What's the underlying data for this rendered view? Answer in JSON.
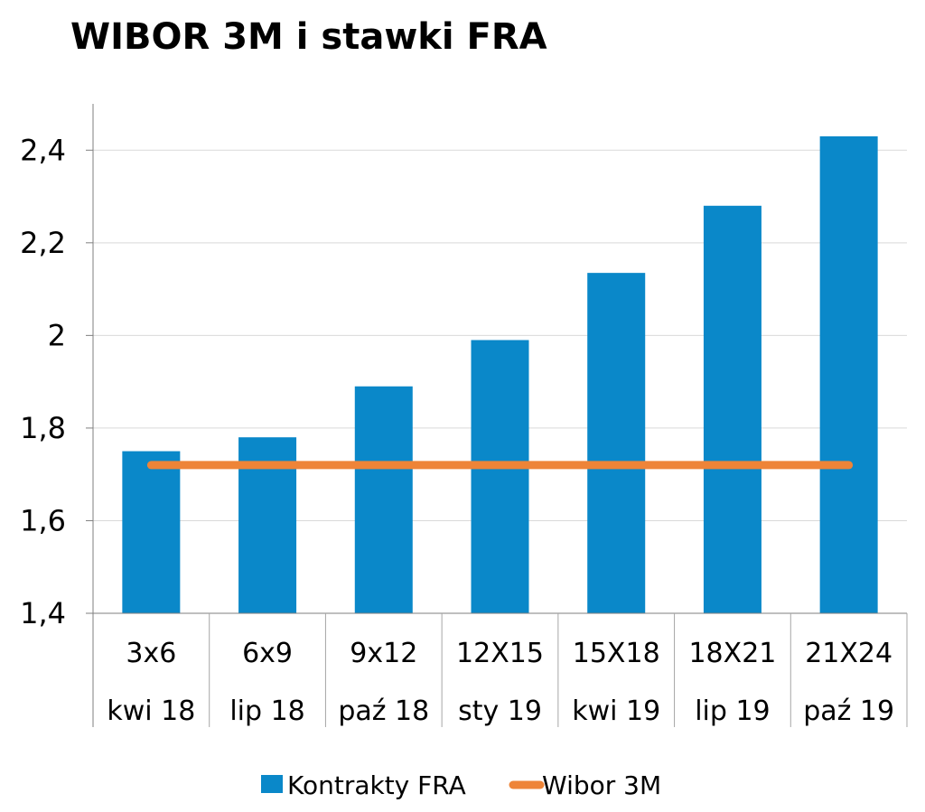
{
  "chart_data": {
    "type": "bar",
    "title": "WIBOR 3M i stawki FRA",
    "xlabel": "",
    "ylabel": "",
    "categories": [
      [
        "3x6",
        "kwi 18"
      ],
      [
        "6x9",
        "lip 18"
      ],
      [
        "9x12",
        "paź 18"
      ],
      [
        "12X15",
        "sty 19"
      ],
      [
        "15X18",
        "kwi 19"
      ],
      [
        "18X21",
        "lip 19"
      ],
      [
        "21X24",
        "paź 19"
      ]
    ],
    "series": [
      {
        "name": "Kontrakty FRA",
        "kind": "bar",
        "color": "#0a88c9",
        "values": [
          1.75,
          1.78,
          1.89,
          1.99,
          2.135,
          2.28,
          2.43
        ]
      },
      {
        "name": "Wibor 3M",
        "kind": "line",
        "color": "#ee8438",
        "values": [
          1.72,
          1.72,
          1.72,
          1.72,
          1.72,
          1.72,
          1.72
        ]
      }
    ],
    "ylim": [
      1.4,
      2.5
    ],
    "yticks": [
      1.4,
      1.6,
      1.8,
      2.0,
      2.2,
      2.4
    ],
    "ytick_labels": [
      "1,4",
      "1,6",
      "1,8",
      "2",
      "2,2",
      "2,4"
    ],
    "grid": true,
    "legend": "bottom-center"
  }
}
